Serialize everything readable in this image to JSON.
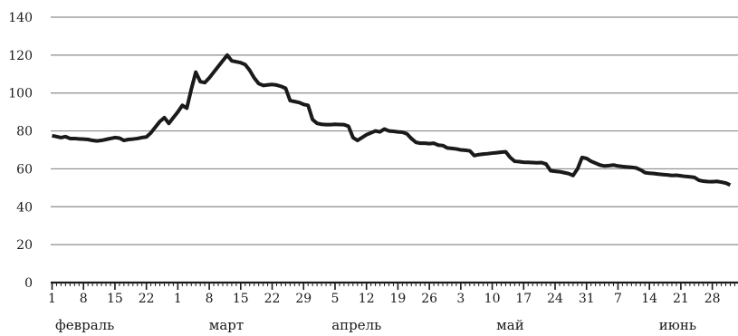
{
  "chart_data": {
    "type": "line",
    "title": "",
    "xlabel": "",
    "ylabel": "",
    "ylim": [
      0,
      140
    ],
    "yticks": [
      0,
      20,
      40,
      60,
      80,
      100,
      120,
      140
    ],
    "grid": "horizontal",
    "line_color": "#1a1a1a",
    "grid_color": "#8c8c8c",
    "x_range_days": [
      0,
      150
    ],
    "x_tick_labels": [
      {
        "day": 0,
        "label": "1"
      },
      {
        "day": 7,
        "label": "8"
      },
      {
        "day": 14,
        "label": "15"
      },
      {
        "day": 21,
        "label": "22"
      },
      {
        "day": 28,
        "label": "1"
      },
      {
        "day": 35,
        "label": "8"
      },
      {
        "day": 42,
        "label": "15"
      },
      {
        "day": 49,
        "label": "22"
      },
      {
        "day": 56,
        "label": "29"
      },
      {
        "day": 63,
        "label": "5"
      },
      {
        "day": 70,
        "label": "12"
      },
      {
        "day": 77,
        "label": "19"
      },
      {
        "day": 84,
        "label": "26"
      },
      {
        "day": 91,
        "label": "3"
      },
      {
        "day": 98,
        "label": "10"
      },
      {
        "day": 105,
        "label": "17"
      },
      {
        "day": 112,
        "label": "24"
      },
      {
        "day": 119,
        "label": "31"
      },
      {
        "day": 126,
        "label": "7"
      },
      {
        "day": 133,
        "label": "14"
      },
      {
        "day": 140,
        "label": "21"
      },
      {
        "day": 147,
        "label": "28"
      }
    ],
    "months": [
      {
        "label": "февраль",
        "day": 7.3
      },
      {
        "label": "март",
        "day": 38.8
      },
      {
        "label": "апрель",
        "day": 67.8
      },
      {
        "label": "май",
        "day": 102
      },
      {
        "label": "июнь",
        "day": 139.3
      }
    ],
    "series": [
      {
        "points": [
          [
            0,
            77.5
          ],
          [
            1,
            77
          ],
          [
            2,
            76.5
          ],
          [
            3,
            77
          ],
          [
            4,
            76
          ],
          [
            5,
            76
          ],
          [
            6,
            75.8
          ],
          [
            7,
            75.7
          ],
          [
            8,
            75.5
          ],
          [
            9,
            75
          ],
          [
            10,
            74.7
          ],
          [
            11,
            75
          ],
          [
            12,
            75.5
          ],
          [
            13,
            76
          ],
          [
            14,
            76.5
          ],
          [
            15,
            76.2
          ],
          [
            16,
            75
          ],
          [
            17,
            75.5
          ],
          [
            18,
            75.7
          ],
          [
            19,
            76
          ],
          [
            20,
            76.5
          ],
          [
            21,
            76.8
          ],
          [
            22,
            79
          ],
          [
            23,
            82
          ],
          [
            24,
            85
          ],
          [
            25,
            87
          ],
          [
            26,
            84
          ],
          [
            27,
            87
          ],
          [
            28,
            90
          ],
          [
            29,
            93.5
          ],
          [
            30,
            92
          ],
          [
            31,
            102
          ],
          [
            32,
            111
          ],
          [
            33,
            106
          ],
          [
            34,
            105.5
          ],
          [
            35,
            108
          ],
          [
            36,
            111
          ],
          [
            37,
            114
          ],
          [
            38,
            117
          ],
          [
            39,
            120
          ],
          [
            40,
            117
          ],
          [
            41,
            116.5
          ],
          [
            42,
            116
          ],
          [
            43,
            115
          ],
          [
            44,
            112
          ],
          [
            45,
            108
          ],
          [
            46,
            105
          ],
          [
            47,
            104
          ],
          [
            48,
            104.3
          ],
          [
            49,
            104.5
          ],
          [
            50,
            104.2
          ],
          [
            51,
            103.5
          ],
          [
            52,
            102.5
          ],
          [
            53,
            96
          ],
          [
            54,
            95.5
          ],
          [
            55,
            95
          ],
          [
            56,
            94
          ],
          [
            57,
            93.5
          ],
          [
            58,
            86
          ],
          [
            59,
            84
          ],
          [
            60,
            83.5
          ],
          [
            61,
            83.3
          ],
          [
            62,
            83.3
          ],
          [
            63,
            83.5
          ],
          [
            64,
            83.4
          ],
          [
            65,
            83.3
          ],
          [
            66,
            82.5
          ],
          [
            67,
            76.5
          ],
          [
            68,
            75
          ],
          [
            69,
            76.5
          ],
          [
            70,
            78
          ],
          [
            71,
            79
          ],
          [
            72,
            80
          ],
          [
            73,
            79.5
          ],
          [
            74,
            81
          ],
          [
            75,
            80
          ],
          [
            76,
            79.8
          ],
          [
            77,
            79.5
          ],
          [
            78,
            79.3
          ],
          [
            79,
            78.5
          ],
          [
            80,
            76
          ],
          [
            81,
            74
          ],
          [
            82,
            73.5
          ],
          [
            83,
            73.5
          ],
          [
            84,
            73.3
          ],
          [
            85,
            73.5
          ],
          [
            86,
            72.5
          ],
          [
            87,
            72.3
          ],
          [
            88,
            71
          ],
          [
            89,
            70.8
          ],
          [
            90,
            70.5
          ],
          [
            91,
            70
          ],
          [
            92,
            69.8
          ],
          [
            93,
            69.5
          ],
          [
            94,
            67
          ],
          [
            95,
            67.5
          ],
          [
            96,
            67.8
          ],
          [
            97,
            68
          ],
          [
            98,
            68.3
          ],
          [
            99,
            68.5
          ],
          [
            100,
            68.8
          ],
          [
            101,
            69
          ],
          [
            102,
            66
          ],
          [
            103,
            64
          ],
          [
            104,
            63.8
          ],
          [
            105,
            63.5
          ],
          [
            106,
            63.4
          ],
          [
            107,
            63.3
          ],
          [
            108,
            63.2
          ],
          [
            109,
            63.3
          ],
          [
            110,
            62.5
          ],
          [
            111,
            59
          ],
          [
            112,
            58.7
          ],
          [
            113,
            58.5
          ],
          [
            114,
            58
          ],
          [
            115,
            57.5
          ],
          [
            116,
            56.5
          ],
          [
            117,
            60
          ],
          [
            118,
            66
          ],
          [
            119,
            65.5
          ],
          [
            120,
            64
          ],
          [
            121,
            63
          ],
          [
            122,
            62
          ],
          [
            123,
            61.5
          ],
          [
            124,
            61.7
          ],
          [
            125,
            62
          ],
          [
            126,
            61.5
          ],
          [
            127,
            61.2
          ],
          [
            128,
            61
          ],
          [
            129,
            60.8
          ],
          [
            130,
            60.5
          ],
          [
            131,
            59.5
          ],
          [
            132,
            58
          ],
          [
            133,
            57.7
          ],
          [
            134,
            57.5
          ],
          [
            135,
            57.2
          ],
          [
            136,
            57
          ],
          [
            137,
            56.8
          ],
          [
            138,
            56.5
          ],
          [
            139,
            56.6
          ],
          [
            140,
            56.3
          ],
          [
            141,
            56
          ],
          [
            142,
            55.8
          ],
          [
            143,
            55.5
          ],
          [
            144,
            54
          ],
          [
            145,
            53.5
          ],
          [
            146,
            53.3
          ],
          [
            147,
            53.2
          ],
          [
            148,
            53.4
          ],
          [
            149,
            53
          ],
          [
            150,
            52.5
          ],
          [
            151,
            51.5
          ]
        ]
      }
    ]
  }
}
